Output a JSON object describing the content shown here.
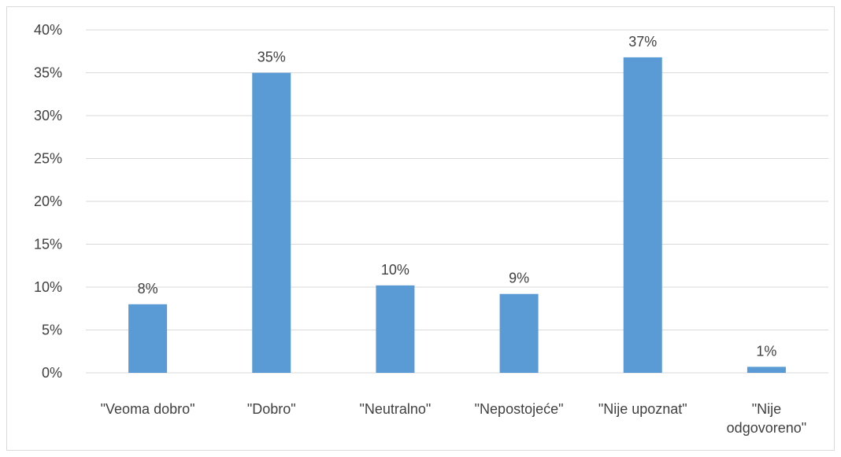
{
  "chart_data": {
    "type": "bar",
    "title": "",
    "xlabel": "",
    "ylabel": "",
    "categories": [
      [
        "\"Veoma dobro\""
      ],
      [
        "\"Dobro\""
      ],
      [
        "\"Neutralno\""
      ],
      [
        "\"Nepostojeće\""
      ],
      [
        "\"Nije upoznat\""
      ],
      [
        "\"Nije",
        "odgovoreno\""
      ]
    ],
    "values": [
      0.08,
      0.35,
      0.102,
      0.092,
      0.368,
      0.007
    ],
    "data_labels": [
      "8%",
      "35%",
      "10%",
      "9%",
      "37%",
      "1%"
    ],
    "ylim": [
      0,
      0.4
    ],
    "yticks": [
      0,
      0.05,
      0.1,
      0.15,
      0.2,
      0.25,
      0.3,
      0.35,
      0.4
    ],
    "ytick_labels": [
      "0%",
      "5%",
      "10%",
      "15%",
      "20%",
      "25%",
      "30%",
      "35%",
      "40%"
    ],
    "grid": true,
    "legend": "none",
    "colors": {
      "bar": "#5b9bd5",
      "grid": "#d9d9d9",
      "text": "#404040"
    }
  }
}
